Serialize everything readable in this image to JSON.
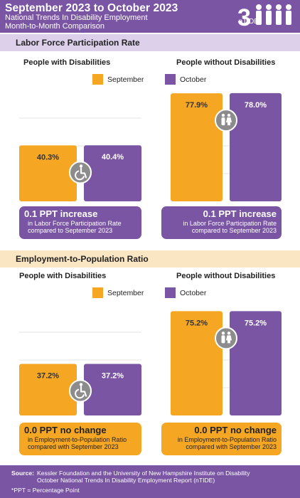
{
  "header": {
    "title": "September 2023 to October 2023",
    "subtitle_line1": "National Trends In Disability Employment",
    "subtitle_line2": "Month-to-Month Comparison",
    "logo_text": "nTIDE"
  },
  "colors": {
    "september": "#f5a623",
    "october": "#7a55a3",
    "purple_band": "#dcd0ea",
    "orange_band": "#fbe6c4"
  },
  "legend": {
    "september": "September",
    "october": "October"
  },
  "sections": [
    {
      "title": "Labor Force Participation Rate",
      "groups": [
        {
          "title": "People with Disabilities",
          "icon": "wheelchair-icon",
          "callout_big": "0.1 PPT increase",
          "callout_line1": "in Labor Force Participation Rate",
          "callout_line2": "compared to September 2023"
        },
        {
          "title": "People without Disabilities",
          "icon": "people-icon",
          "callout_big": "0.1 PPT increase",
          "callout_line1": "in Labor Force Participation Rate",
          "callout_line2": "compared to September 2023"
        }
      ]
    },
    {
      "title": "Employment-to-Population Ratio",
      "groups": [
        {
          "title": "People with Disabilities",
          "icon": "wheelchair-icon",
          "callout_big": "0.0 PPT no change",
          "callout_line1": "in Employment-to-Population Ratio",
          "callout_line2": "compared with September 2023"
        },
        {
          "title": "People without Disabilities",
          "icon": "people-icon",
          "callout_big": "0.0 PPT no change",
          "callout_line1": "in Employment-to-Population Ratio",
          "callout_line2": "compared with September 2023"
        }
      ]
    }
  ],
  "chart_data": [
    {
      "type": "bar",
      "title": "Labor Force Participation Rate – People with Disabilities",
      "categories": [
        "September",
        "October"
      ],
      "values": [
        40.3,
        40.4
      ],
      "labels": [
        "40.3%",
        "40.4%"
      ],
      "ylim": [
        0,
        80
      ]
    },
    {
      "type": "bar",
      "title": "Labor Force Participation Rate – People without Disabilities",
      "categories": [
        "September",
        "October"
      ],
      "values": [
        77.9,
        78.0
      ],
      "labels": [
        "77.9%",
        "78.0%"
      ],
      "ylim": [
        0,
        80
      ]
    },
    {
      "type": "bar",
      "title": "Employment-to-Population Ratio – People with Disabilities",
      "categories": [
        "September",
        "October"
      ],
      "values": [
        37.2,
        37.2
      ],
      "labels": [
        "37.2%",
        "37.2%"
      ],
      "ylim": [
        0,
        80
      ]
    },
    {
      "type": "bar",
      "title": "Employment-to-Population Ratio – People without Disabilities",
      "categories": [
        "September",
        "October"
      ],
      "values": [
        75.2,
        75.2
      ],
      "labels": [
        "75.2%",
        "75.2%"
      ],
      "ylim": [
        0,
        80
      ]
    }
  ],
  "footer": {
    "source_label": "Source:",
    "source_line1": "Kessler Foundation and the University of New Hampshire Institute on Disability",
    "source_line2": "October National Trends In Disability Employment Report (nTIDE)",
    "ppt_note": "*PPT = Percentage Point"
  }
}
